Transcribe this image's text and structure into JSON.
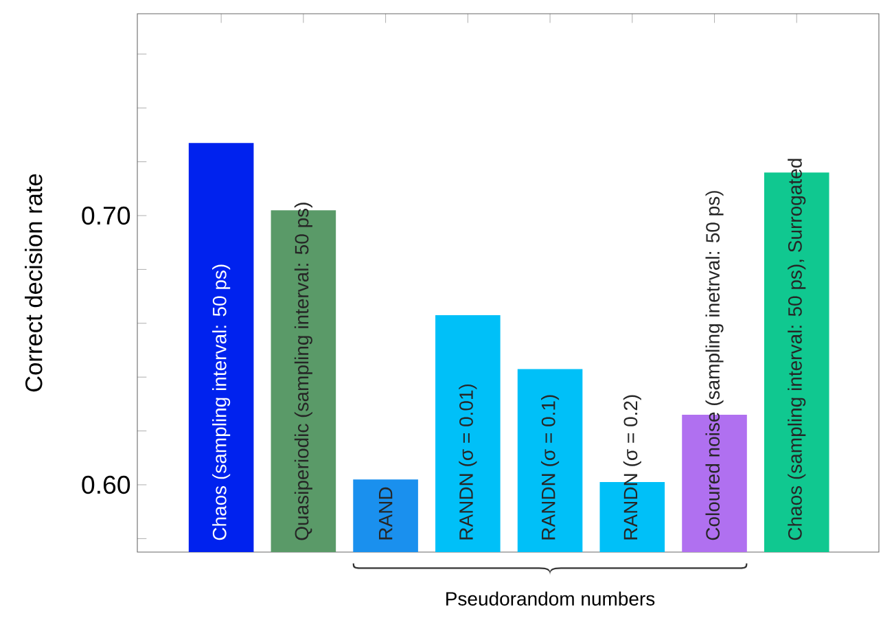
{
  "chart_data": {
    "type": "bar",
    "ylabel": "Correct decision rate",
    "categories": [
      "Chaos (sampling interval:  50 ps)",
      "Quasiperiodic (sampling interval: 50 ps)",
      "RAND",
      "RANDN (σ = 0.01)",
      "RANDN (σ = 0.1)",
      "RANDN (σ = 0.2)",
      "Coloured noise (sampling inetrval: 50 ps)",
      "Chaos (sampling interval:  50 ps), Surrogated"
    ],
    "values": [
      0.727,
      0.702,
      0.602,
      0.663,
      0.643,
      0.601,
      0.626,
      0.716
    ],
    "colors": [
      "#0022ee",
      "#5a9a68",
      "#1a90ee",
      "#00c0f8",
      "#00c0f8",
      "#00c0f8",
      "#b070f0",
      "#10c890"
    ],
    "ylim": [
      0.575,
      0.775
    ],
    "yticks": [
      {
        "value": 0.58,
        "label": null
      },
      {
        "value": 0.6,
        "label": "0.60"
      },
      {
        "value": 0.62,
        "label": null
      },
      {
        "value": 0.64,
        "label": null
      },
      {
        "value": 0.66,
        "label": null
      },
      {
        "value": 0.68,
        "label": null
      },
      {
        "value": 0.7,
        "label": "0.70"
      },
      {
        "value": 0.72,
        "label": null
      },
      {
        "value": 0.74,
        "label": null
      },
      {
        "value": 0.76,
        "label": null
      }
    ],
    "annotations": [
      "Pseudorandom numbers"
    ],
    "grid": false
  }
}
